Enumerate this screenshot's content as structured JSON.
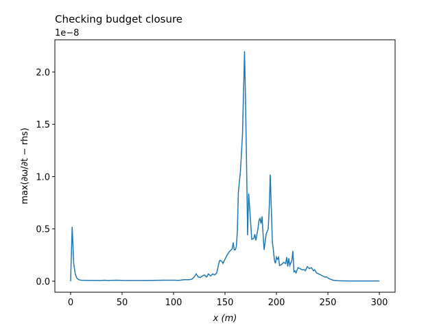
{
  "chart_data": {
    "type": "line",
    "title": "Checking budget closure",
    "offset_label": "1e−8",
    "xlabel": "x (m)",
    "ylabel": "max(∂ω/∂t − rhs)",
    "xlim": [
      -15.3,
      315.3
    ],
    "xticks": [
      0,
      50,
      100,
      150,
      200,
      250,
      300
    ],
    "ylim": [
      -0.105,
      2.308
    ],
    "yticks": [
      {
        "value": 0,
        "label": "0.0"
      },
      {
        "value": 0.5,
        "label": "0.5"
      },
      {
        "value": 1,
        "label": "1.0"
      },
      {
        "value": 1.5,
        "label": "1.5"
      },
      {
        "value": 2,
        "label": "2.0"
      }
    ],
    "grid": false,
    "x": [
      0,
      1.5,
      3,
      4.5,
      6,
      8,
      10,
      15,
      20,
      30,
      33,
      36,
      45,
      50,
      60,
      70,
      80,
      90,
      100,
      105,
      110,
      115,
      118,
      120,
      122,
      124,
      126,
      128,
      130,
      132,
      134,
      136,
      138,
      140,
      142,
      144,
      145,
      147,
      148,
      150,
      152,
      154,
      156,
      157,
      158,
      159,
      160,
      161,
      162,
      163,
      165,
      167,
      169,
      170,
      171,
      172,
      173,
      174,
      175,
      176,
      178,
      179,
      180,
      182,
      183,
      184,
      185,
      186,
      187,
      188,
      190,
      192,
      193,
      194,
      195,
      196,
      197,
      198,
      199,
      200,
      201,
      202,
      203,
      205,
      207,
      209,
      210,
      211,
      212,
      213,
      215,
      216,
      217,
      218,
      219,
      221,
      223,
      225,
      227,
      228,
      230,
      232,
      234,
      236,
      237,
      239,
      241,
      243,
      245,
      247,
      249,
      251,
      255,
      260,
      270,
      280,
      300
    ],
    "series": [
      {
        "color": "#1f77b4",
        "values": [
          0.0,
          0.52,
          0.17,
          0.07,
          0.03,
          0.015,
          0.01,
          0.008,
          0.008,
          0.007,
          0.01,
          0.007,
          0.01,
          0.008,
          0.007,
          0.007,
          0.008,
          0.01,
          0.01,
          0.008,
          0.015,
          0.015,
          0.02,
          0.04,
          0.07,
          0.04,
          0.035,
          0.05,
          0.06,
          0.04,
          0.07,
          0.05,
          0.07,
          0.06,
          0.08,
          0.17,
          0.2,
          0.19,
          0.17,
          0.21,
          0.25,
          0.28,
          0.3,
          0.31,
          0.37,
          0.3,
          0.3,
          0.33,
          0.47,
          0.85,
          1.05,
          1.4,
          2.2,
          1.7,
          1.1,
          0.44,
          0.84,
          0.7,
          0.55,
          0.4,
          0.41,
          0.45,
          0.39,
          0.5,
          0.58,
          0.6,
          0.55,
          0.62,
          0.45,
          0.3,
          0.45,
          0.5,
          0.7,
          1.02,
          0.7,
          0.38,
          0.3,
          0.2,
          0.17,
          0.23,
          0.21,
          0.23,
          0.15,
          0.16,
          0.18,
          0.17,
          0.23,
          0.14,
          0.22,
          0.15,
          0.2,
          0.29,
          0.09,
          0.1,
          0.08,
          0.13,
          0.12,
          0.11,
          0.11,
          0.1,
          0.14,
          0.12,
          0.13,
          0.1,
          0.11,
          0.08,
          0.07,
          0.06,
          0.05,
          0.04,
          0.04,
          0.025,
          0.01,
          0.005,
          0.002,
          0.002,
          0.002
        ]
      }
    ]
  }
}
